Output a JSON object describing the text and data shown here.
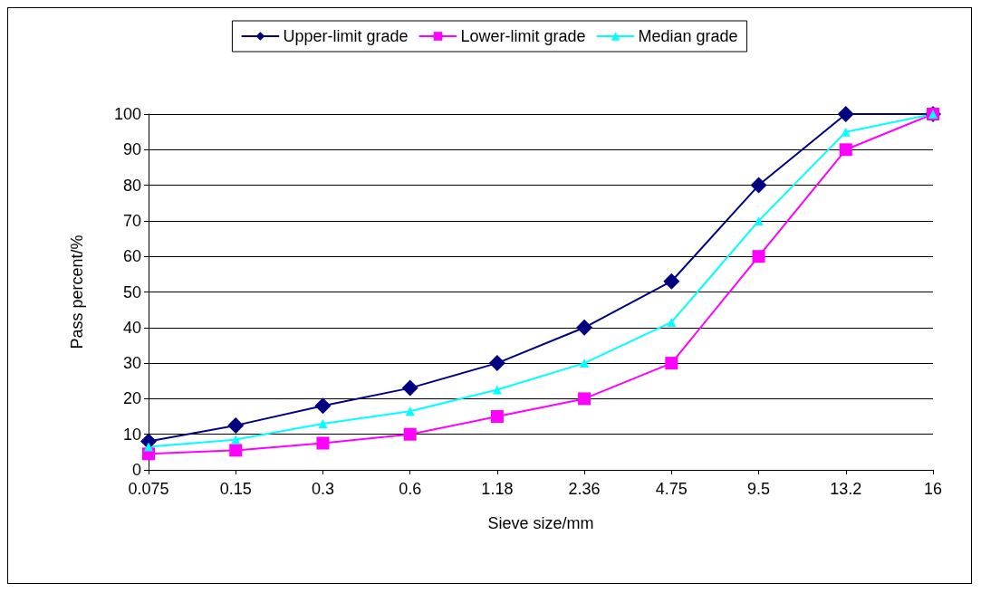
{
  "chart_data": {
    "type": "line",
    "xlabel": "Sieve size/mm",
    "ylabel": "Pass percent/%",
    "categories": [
      "0.075",
      "0.15",
      "0.3",
      "0.6",
      "1.18",
      "2.36",
      "4.75",
      "9.5",
      "13.2",
      "16"
    ],
    "series": [
      {
        "name": "Upper-limit grade",
        "color": "#000080",
        "marker": "diamond",
        "values": [
          8,
          12.5,
          18,
          23,
          30,
          40,
          53,
          80,
          100,
          100
        ]
      },
      {
        "name": "Lower-limit grade",
        "color": "#ff00ff",
        "marker": "square",
        "values": [
          4.5,
          5.5,
          7.5,
          10,
          15,
          20,
          30,
          60,
          90,
          100
        ]
      },
      {
        "name": "Median grade",
        "color": "#00ffff",
        "marker": "triangle",
        "values": [
          6.5,
          8.5,
          13,
          16.5,
          22.5,
          30,
          41.5,
          70,
          95,
          100
        ]
      }
    ],
    "ylim": [
      0,
      100
    ],
    "yticks": [
      0,
      10,
      20,
      30,
      40,
      50,
      60,
      70,
      80,
      90,
      100
    ],
    "grid": "y",
    "legend": "top"
  }
}
